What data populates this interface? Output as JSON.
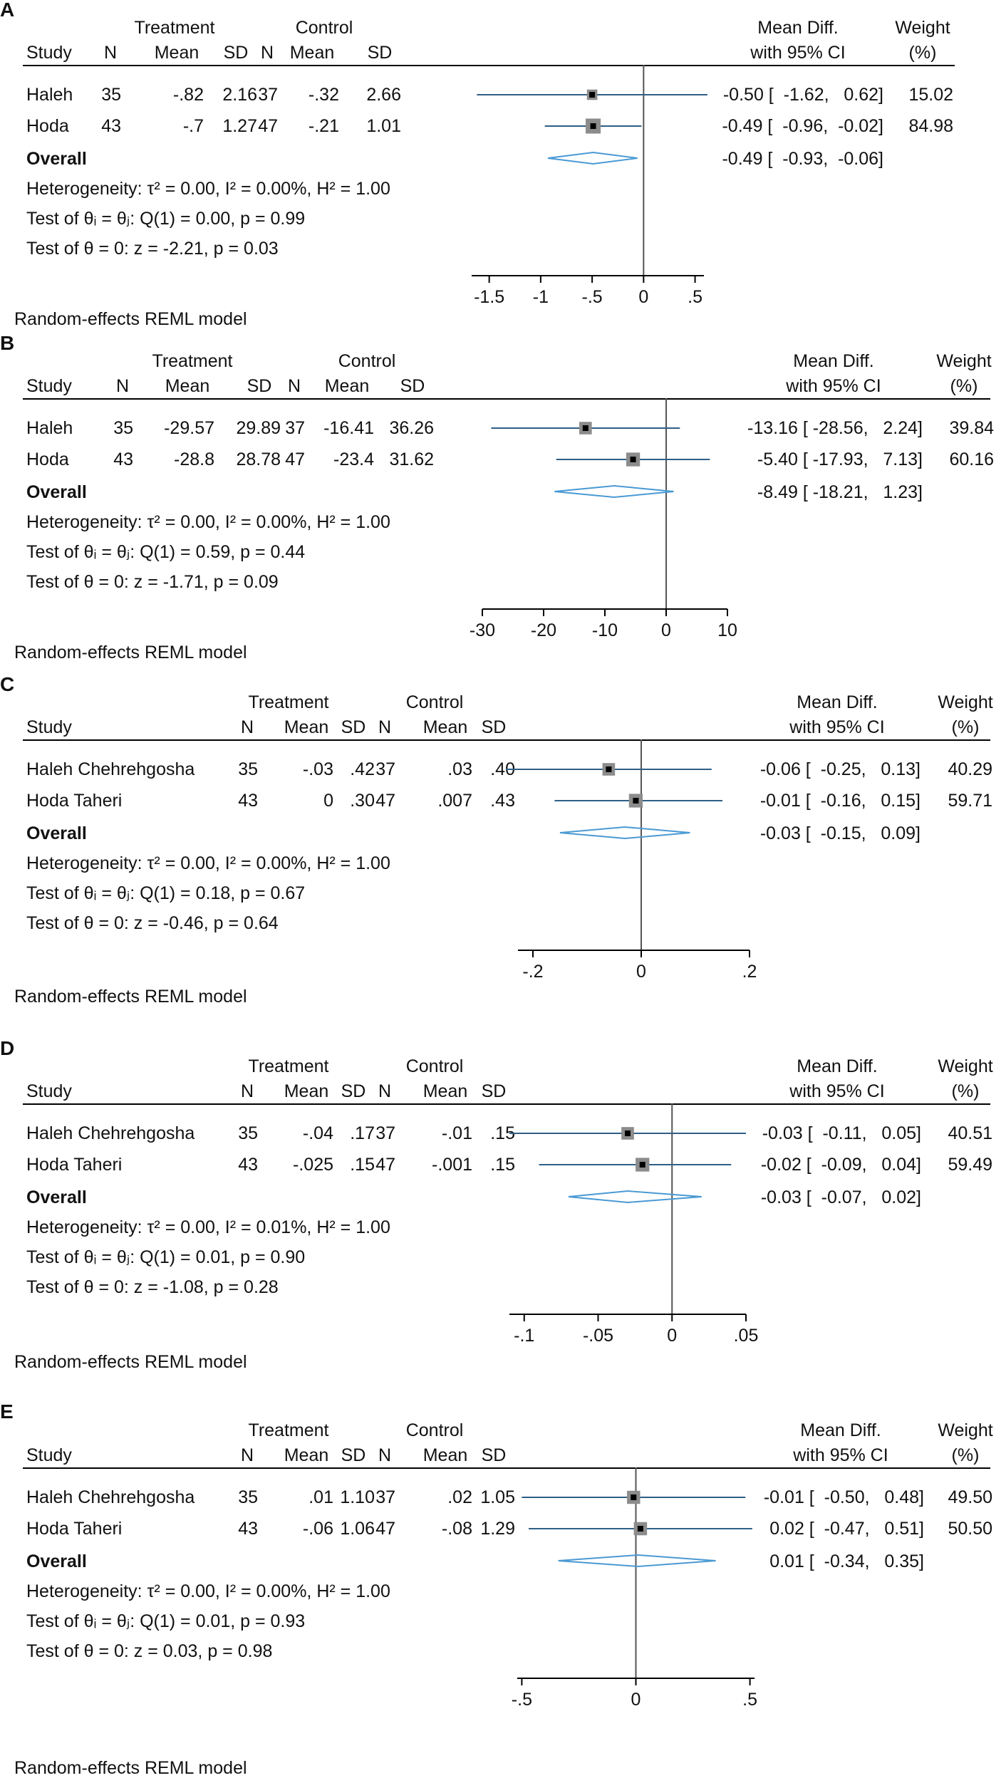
{
  "chart_data": [
    {
      "type": "forest",
      "letter": "A",
      "h_treatment": "Treatment",
      "h_control": "Control",
      "h_study": "Study",
      "h_n": "N",
      "h_mean": "Mean",
      "h_sd": "SD",
      "h_md1": "Mean Diff.",
      "h_md2": "with 95% CI",
      "h_w1": "Weight",
      "h_w2": "(%)",
      "studies": [
        {
          "name": "Haleh",
          "t_n": "35",
          "t_mean": "-.82",
          "t_sd": "2.16",
          "c_n": "37",
          "c_mean": "-.32",
          "c_sd": "2.66",
          "est": -0.5,
          "lo": -1.62,
          "hi": 0.62,
          "md_text": "-0.50 [  -1.62,   0.62]",
          "weight": "15.02"
        },
        {
          "name": "Hoda",
          "t_n": "43",
          "t_mean": "-.7",
          "t_sd": "1.27",
          "c_n": "47",
          "c_mean": "-.21",
          "c_sd": "1.01",
          "est": -0.49,
          "lo": -0.96,
          "hi": -0.02,
          "md_text": "-0.49 [  -0.96,  -0.02]",
          "weight": "84.98"
        }
      ],
      "overall_label": "Overall",
      "overall": {
        "est": -0.49,
        "lo": -0.93,
        "hi": -0.06,
        "md_text": "-0.49 [  -0.93,  -0.06]"
      },
      "heterogeneity": "Heterogeneity: τ² = 0.00, I² = 0.00%, H² = 1.00",
      "test_q": "Test of θᵢ = θⱼ: Q(1) = 0.00, p = 0.99",
      "test_z": "Test of θ = 0: z = -2.21, p = 0.03",
      "model": "Random-effects REML model",
      "xlim": [
        -1.65,
        0.6
      ],
      "ticks": [
        -1.5,
        -1,
        -0.5,
        0,
        0.5
      ],
      "tick_labels": [
        "-1.5",
        "-1",
        "-.5",
        "0",
        ".5"
      ]
    },
    {
      "type": "forest",
      "letter": "B",
      "h_treatment": "Treatment",
      "h_control": "Control",
      "h_study": "Study",
      "h_n": "N",
      "h_mean": "Mean",
      "h_sd": "SD",
      "h_md1": "Mean Diff.",
      "h_md2": "with 95% CI",
      "h_w1": "Weight",
      "h_w2": "(%)",
      "studies": [
        {
          "name": "Haleh",
          "t_n": "35",
          "t_mean": "-29.57",
          "t_sd": "29.89",
          "c_n": "37",
          "c_mean": "-16.41",
          "c_sd": "36.26",
          "est": -13.16,
          "lo": -28.56,
          "hi": 2.24,
          "md_text": "-13.16 [ -28.56,   2.24]",
          "weight": "39.84"
        },
        {
          "name": "Hoda",
          "t_n": "43",
          "t_mean": "-28.8",
          "t_sd": "28.78",
          "c_n": "47",
          "c_mean": "-23.4",
          "c_sd": "31.62",
          "est": -5.4,
          "lo": -17.93,
          "hi": 7.13,
          "md_text": "-5.40 [ -17.93,   7.13]",
          "weight": "60.16"
        }
      ],
      "overall_label": "Overall",
      "overall": {
        "est": -8.49,
        "lo": -18.21,
        "hi": 1.23,
        "md_text": "-8.49 [ -18.21,   1.23]"
      },
      "heterogeneity": "Heterogeneity: τ² = 0.00, I² = 0.00%, H² = 1.00",
      "test_q": "Test of θᵢ = θⱼ: Q(1) = 0.59, p = 0.44",
      "test_z": "Test of θ = 0: z = -1.71, p = 0.09",
      "model": "Random-effects REML model",
      "xlim": [
        -30,
        10
      ],
      "ticks": [
        -30,
        -20,
        -10,
        0,
        10
      ],
      "tick_labels": [
        "-30",
        "-20",
        "-10",
        "0",
        "10"
      ]
    },
    {
      "type": "forest",
      "letter": "C",
      "h_treatment": "Treatment",
      "h_control": "Control",
      "h_study": "Study",
      "h_n": "N",
      "h_mean": "Mean",
      "h_sd": "SD",
      "h_md1": "Mean Diff.",
      "h_md2": "with 95% CI",
      "h_w1": "Weight",
      "h_w2": "(%)",
      "studies": [
        {
          "name": "Haleh Chehrehgosha",
          "t_n": "35",
          "t_mean": "-.03",
          "t_sd": ".42",
          "c_n": "37",
          "c_mean": ".03",
          "c_sd": ".40",
          "est": -0.06,
          "lo": -0.25,
          "hi": 0.13,
          "md_text": "-0.06 [  -0.25,   0.13]",
          "weight": "40.29"
        },
        {
          "name": "Hoda Taheri",
          "t_n": "43",
          "t_mean": "0",
          "t_sd": ".30",
          "c_n": "47",
          "c_mean": ".007",
          "c_sd": ".43",
          "est": -0.01,
          "lo": -0.16,
          "hi": 0.15,
          "md_text": "-0.01 [  -0.16,   0.15]",
          "weight": "59.71"
        }
      ],
      "overall_label": "Overall",
      "overall": {
        "est": -0.03,
        "lo": -0.15,
        "hi": 0.09,
        "md_text": "-0.03 [  -0.15,   0.09]"
      },
      "heterogeneity": "Heterogeneity: τ² = 0.00, I² = 0.00%, H² = 1.00",
      "test_q": "Test of θᵢ = θⱼ: Q(1) = 0.18, p = 0.67",
      "test_z": "Test of θ = 0: z = -0.46, p = 0.64",
      "model": "Random-effects REML model",
      "xlim": [
        -0.25,
        0.2
      ],
      "ticks": [
        -0.2,
        0,
        0.2
      ],
      "tick_labels": [
        "-.2",
        "0",
        ".2"
      ]
    },
    {
      "type": "forest",
      "letter": "D",
      "h_treatment": "Treatment",
      "h_control": "Control",
      "h_study": "Study",
      "h_n": "N",
      "h_mean": "Mean",
      "h_sd": "SD",
      "h_md1": "Mean Diff.",
      "h_md2": "with 95% CI",
      "h_w1": "Weight",
      "h_w2": "(%)",
      "studies": [
        {
          "name": "Haleh Chehrehgosha",
          "t_n": "35",
          "t_mean": "-.04",
          "t_sd": ".17",
          "c_n": "37",
          "c_mean": "-.01",
          "c_sd": ".15",
          "est": -0.03,
          "lo": -0.11,
          "hi": 0.05,
          "md_text": "-0.03 [  -0.11,   0.05]",
          "weight": "40.51"
        },
        {
          "name": "Hoda Taheri",
          "t_n": "43",
          "t_mean": "-.025",
          "t_sd": ".15",
          "c_n": "47",
          "c_mean": "-.001",
          "c_sd": ".15",
          "est": -0.02,
          "lo": -0.09,
          "hi": 0.04,
          "md_text": "-0.02 [  -0.09,   0.04]",
          "weight": "59.49"
        }
      ],
      "overall_label": "Overall",
      "overall": {
        "est": -0.03,
        "lo": -0.07,
        "hi": 0.02,
        "md_text": "-0.03 [  -0.07,   0.02]"
      },
      "heterogeneity": "Heterogeneity: τ² = 0.00, I² = 0.01%, H² = 1.00",
      "test_q": "Test of θᵢ = θⱼ: Q(1) = 0.01, p = 0.90",
      "test_z": "Test of θ = 0: z = -1.08, p = 0.28",
      "model": "Random-effects REML model",
      "xlim": [
        -0.11,
        0.05
      ],
      "ticks": [
        -0.1,
        -0.05,
        0,
        0.05
      ],
      "tick_labels": [
        "-.1",
        "-.05",
        "0",
        ".05"
      ]
    },
    {
      "type": "forest",
      "letter": "E",
      "h_treatment": "Treatment",
      "h_control": "Control",
      "h_study": "Study",
      "h_n": "N",
      "h_mean": "Mean",
      "h_sd": "SD",
      "h_md1": "Mean Diff.",
      "h_md2": "with 95% CI",
      "h_w1": "Weight",
      "h_w2": "(%)",
      "studies": [
        {
          "name": "Haleh Chehrehgosha",
          "t_n": "35",
          "t_mean": ".01",
          "t_sd": "1.10",
          "c_n": "37",
          "c_mean": ".02",
          "c_sd": "1.05",
          "est": -0.01,
          "lo": -0.5,
          "hi": 0.48,
          "md_text": "-0.01 [  -0.50,   0.48]",
          "weight": "49.50"
        },
        {
          "name": "Hoda Taheri",
          "t_n": "43",
          "t_mean": "-.06",
          "t_sd": "1.06",
          "c_n": "47",
          "c_mean": "-.08",
          "c_sd": "1.29",
          "est": 0.02,
          "lo": -0.47,
          "hi": 0.51,
          "md_text": "0.02 [  -0.47,   0.51]",
          "weight": "50.50"
        }
      ],
      "overall_label": "Overall",
      "overall": {
        "est": 0.01,
        "lo": -0.34,
        "hi": 0.35,
        "md_text": "0.01 [  -0.34,   0.35]"
      },
      "heterogeneity": "Heterogeneity: τ² = 0.00, I² = 0.00%, H² = 1.00",
      "test_q": "Test of θᵢ = θⱼ: Q(1) = 0.01, p = 0.93",
      "test_z": "Test of θ = 0: z = 0.03, p = 0.98",
      "model": "Random-effects REML model",
      "xlim": [
        -0.52,
        0.52
      ],
      "ticks": [
        -0.5,
        0,
        0.5
      ],
      "tick_labels": [
        "-.5",
        "0",
        ".5"
      ]
    }
  ],
  "colors": {
    "ci_line": "#2e5f86",
    "diamond": "#4a9ad4",
    "marker_box": "#8c8c8c",
    "marker_dot": "#000000",
    "axis": "#000000",
    "null_line": "#555555"
  }
}
